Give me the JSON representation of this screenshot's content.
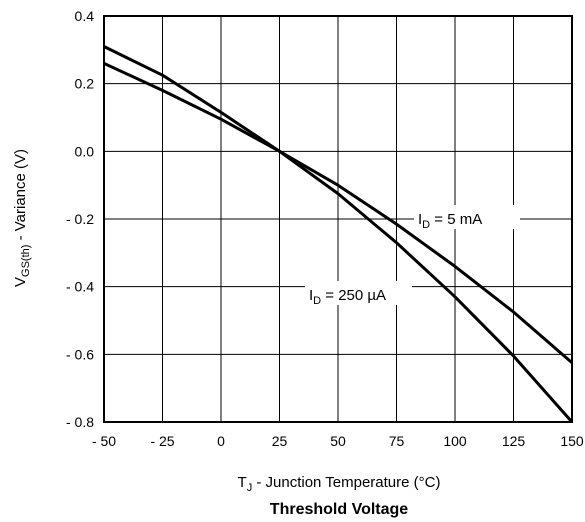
{
  "chart_data": {
    "type": "line",
    "title": "Threshold Voltage",
    "xlabel_main": "T",
    "xlabel_sub": "J",
    "xlabel_rest": " - Junction Temperature (°C)",
    "ylabel_main": "V",
    "ylabel_sub": "GS(th)",
    "ylabel_rest": " - Variance (V)",
    "xlim": [
      -50,
      150
    ],
    "ylim": [
      -0.8,
      0.4
    ],
    "x_ticks": [
      -50,
      -25,
      0,
      25,
      50,
      75,
      100,
      125,
      150
    ],
    "x_tick_labels": [
      "- 50",
      "- 25",
      "0",
      "25",
      "50",
      "75",
      "100",
      "125",
      "150"
    ],
    "y_ticks": [
      0.4,
      0.2,
      0.0,
      -0.2,
      -0.4,
      -0.6,
      -0.8
    ],
    "y_tick_labels": [
      "0.4",
      "0.2",
      "0.0",
      "- 0.2",
      "- 0.4",
      "- 0.6",
      "- 0.8"
    ],
    "grid": true,
    "series": [
      {
        "label_main": "I",
        "label_sub": "D",
        "label_rest": " = 5 mA",
        "x": [
          -50,
          -25,
          0,
          25,
          50,
          75,
          100,
          125,
          150
        ],
        "y": [
          0.26,
          0.18,
          0.095,
          0.0,
          -0.1,
          -0.215,
          -0.34,
          -0.475,
          -0.625
        ]
      },
      {
        "label_main": "I",
        "label_sub": "D",
        "label_rest": " = 250 µA",
        "x": [
          -50,
          -25,
          0,
          25,
          50,
          75,
          100,
          125,
          150
        ],
        "y": [
          0.31,
          0.225,
          0.115,
          0.0,
          -0.125,
          -0.27,
          -0.43,
          -0.605,
          -0.8
        ]
      }
    ]
  }
}
